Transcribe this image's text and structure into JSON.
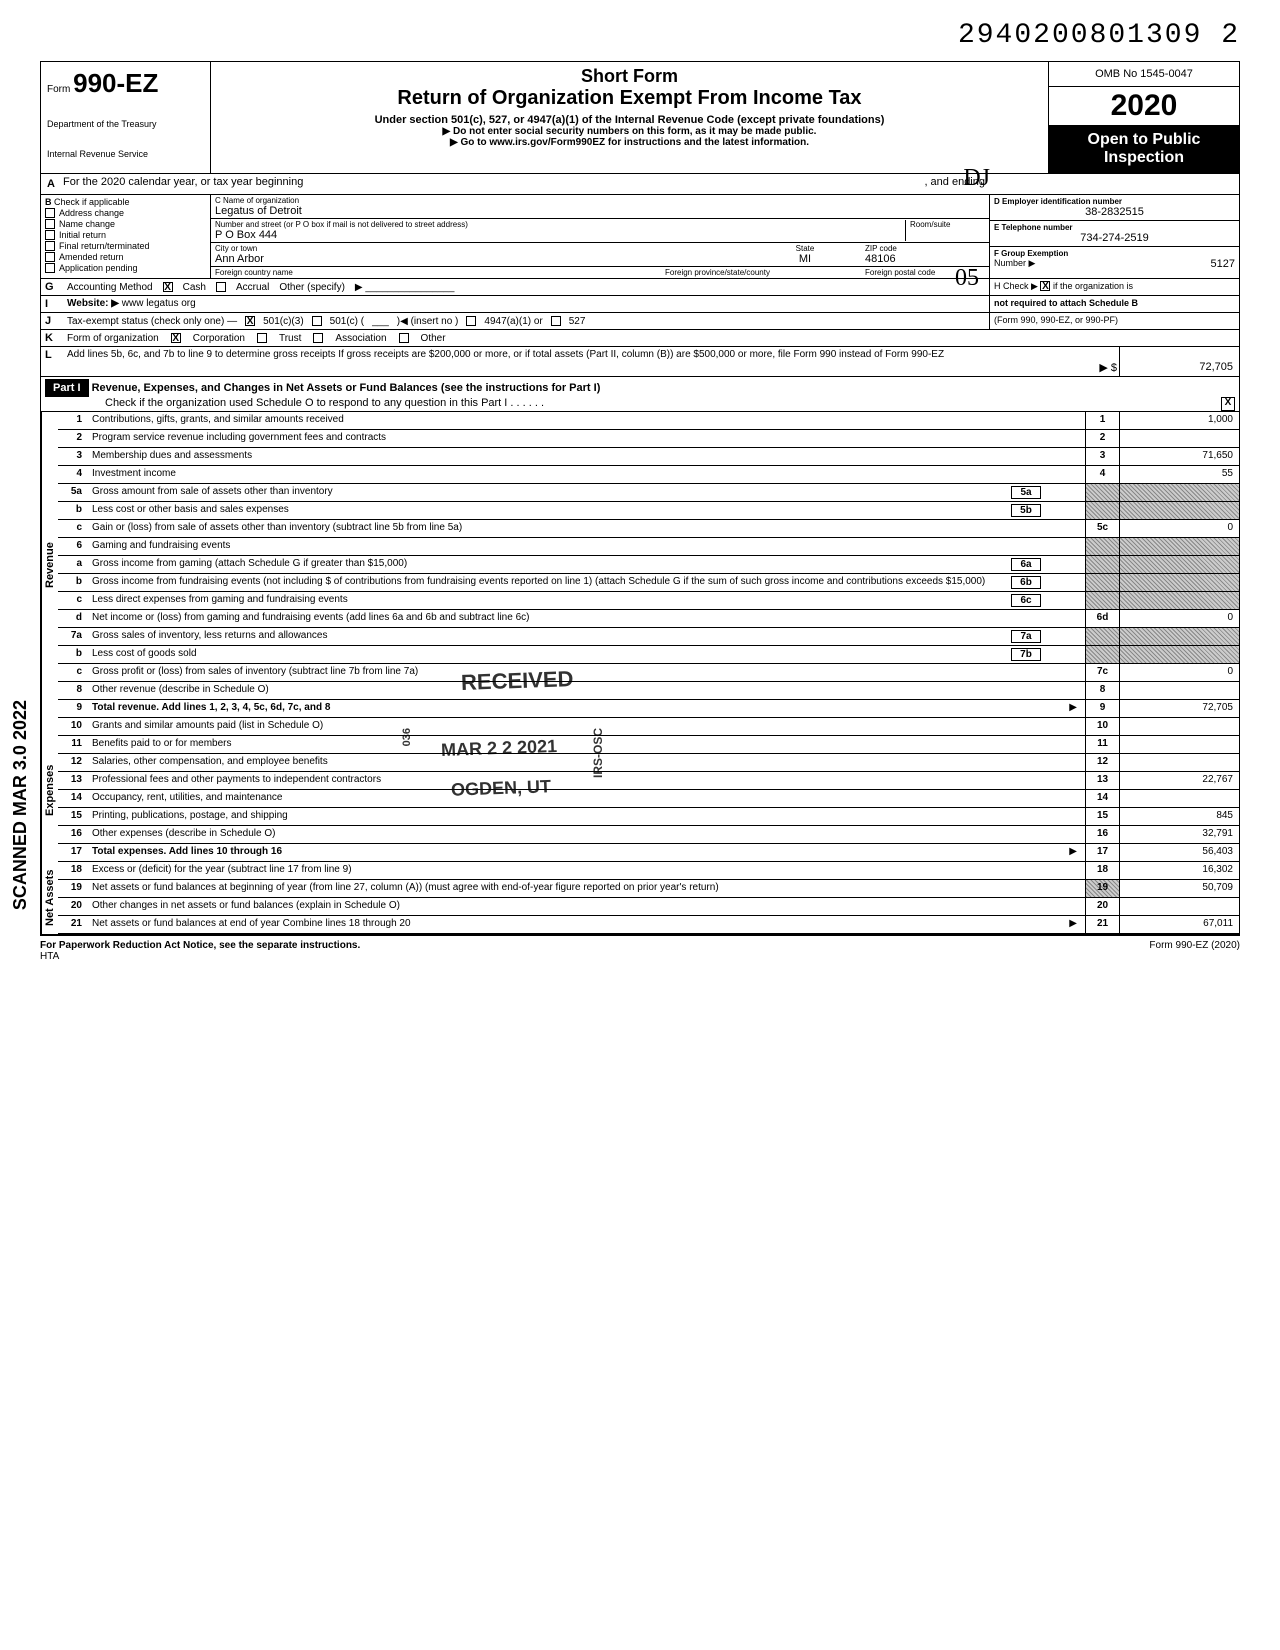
{
  "dln": "29402008013092",
  "dln_display": "2940200801309  2",
  "form": {
    "prefix": "Form",
    "number": "990-EZ",
    "dept1": "Department of the Treasury",
    "dept2": "Internal Revenue Service"
  },
  "title": {
    "short": "Short Form",
    "main": "Return of Organization Exempt From Income Tax",
    "sub": "Under section 501(c), 527, or 4947(a)(1) of the Internal Revenue Code (except private foundations)",
    "inst1": "Do not enter social security numbers on this form, as it may be made public.",
    "inst2": "Go to www.irs.gov/Form990EZ for instructions and the latest information."
  },
  "right": {
    "omb": "OMB No 1545-0047",
    "year": "2020",
    "open1": "Open to Public",
    "open2": "Inspection"
  },
  "rowA": "For the 2020 calendar year, or tax year beginning",
  "rowA_end": ", and ending",
  "rowB": {
    "label": "Check if applicable",
    "items": [
      "Address change",
      "Name change",
      "Initial return",
      "Final return/terminated",
      "Amended return",
      "Application pending"
    ]
  },
  "org": {
    "name_label": "C  Name of organization",
    "name": "Legatus of Detroit",
    "street_label": "Number and street (or P O  box if mail is not delivered to street address)",
    "room_label": "Room/suite",
    "street": "P O Box 444",
    "city_label": "City or town",
    "state_label": "State",
    "zip_label": "ZIP code",
    "city": "Ann Arbor",
    "state": "MI",
    "zip": "48106",
    "foreign_country_label": "Foreign country name",
    "foreign_prov_label": "Foreign province/state/county",
    "foreign_postal_label": "Foreign postal code"
  },
  "boxD": {
    "label": "D  Employer identification number",
    "value": "38-2832515"
  },
  "boxE": {
    "label": "E  Telephone number",
    "value": "734-274-2519"
  },
  "boxF": {
    "label": "F  Group Exemption",
    "label2": "Number ▶",
    "value": "5127"
  },
  "rowG": {
    "label": "Accounting Method",
    "cash": "Cash",
    "accrual": "Accrual",
    "other": "Other (specify)",
    "cash_checked": "X"
  },
  "rowI": {
    "label": "Website: ▶",
    "value": "www legatus org"
  },
  "boxH": {
    "text1": "H Check ▶",
    "checked": "X",
    "text2": "if the organization is",
    "text3": "not required to attach Schedule B",
    "text4": "(Form 990, 990-EZ, or 990-PF)"
  },
  "rowJ": {
    "label": "Tax-exempt status (check only one) —",
    "opt1": "501(c)(3)",
    "opt1_checked": "X",
    "opt2": "501(c) (",
    "opt2_insert": ")◀ (insert no )",
    "opt3": "4947(a)(1) or",
    "opt4": "527"
  },
  "rowK": {
    "label": "Form of organization",
    "corp": "Corporation",
    "corp_checked": "X",
    "trust": "Trust",
    "assoc": "Association",
    "other": "Other"
  },
  "rowL": {
    "text": "Add lines 5b, 6c, and 7b to line 9 to determine gross receipts  If gross receipts are $200,000 or more, or if total assets (Part II, column (B)) are $500,000 or more, file Form 990 instead of Form 990-EZ",
    "arrow": "▶ $",
    "value": "72,705"
  },
  "part1": {
    "header": "Part I",
    "title": "Revenue, Expenses, and Changes in Net Assets or Fund Balances (see the instructions for Part I)",
    "check_text": "Check if the organization used Schedule O to respond to any question in this Part I",
    "checked": "X"
  },
  "sections": {
    "revenue": "Revenue",
    "expenses": "Expenses",
    "net_assets": "Net Assets"
  },
  "lines": [
    {
      "num": "1",
      "desc": "Contributions, gifts, grants, and similar amounts received",
      "ln": "1",
      "amt": "1,000"
    },
    {
      "num": "2",
      "desc": "Program service revenue including government fees and contracts",
      "ln": "2",
      "amt": ""
    },
    {
      "num": "3",
      "desc": "Membership dues and assessments",
      "ln": "3",
      "amt": "71,650"
    },
    {
      "num": "4",
      "desc": "Investment income",
      "ln": "4",
      "amt": "55"
    },
    {
      "num": "5a",
      "desc": "Gross amount from sale of assets other than inventory",
      "sub": "5a",
      "shaded": true
    },
    {
      "num": "b",
      "desc": "Less  cost or other basis and sales expenses",
      "sub": "5b",
      "shaded": true
    },
    {
      "num": "c",
      "desc": "Gain or (loss) from sale of assets other than inventory (subtract line 5b from line 5a)",
      "ln": "5c",
      "amt": "0"
    },
    {
      "num": "6",
      "desc": "Gaming and fundraising events",
      "shaded": true
    },
    {
      "num": "a",
      "desc": "Gross income from gaming (attach Schedule G if greater than $15,000)",
      "sub": "6a",
      "shaded": true
    },
    {
      "num": "b",
      "desc": "Gross income from fundraising events (not including   $            of contributions from fundraising events reported on line 1) (attach Schedule G if the sum of such gross income and contributions exceeds $15,000)",
      "sub": "6b",
      "shaded": true
    },
    {
      "num": "c",
      "desc": "Less  direct expenses from gaming and fundraising events",
      "sub": "6c",
      "shaded": true
    },
    {
      "num": "d",
      "desc": "Net income or (loss) from gaming and fundraising events (add lines 6a and 6b and subtract line 6c)",
      "ln": "6d",
      "amt": "0"
    },
    {
      "num": "7a",
      "desc": "Gross sales of inventory, less returns and allowances",
      "sub": "7a",
      "shaded": true
    },
    {
      "num": "b",
      "desc": "Less  cost of goods sold",
      "sub": "7b",
      "shaded": true
    },
    {
      "num": "c",
      "desc": "Gross profit or (loss) from sales of inventory (subtract line 7b from line 7a)",
      "ln": "7c",
      "amt": "0"
    },
    {
      "num": "8",
      "desc": "Other revenue (describe in Schedule O)",
      "ln": "8",
      "amt": ""
    },
    {
      "num": "9",
      "desc": "Total revenue. Add lines 1, 2, 3, 4, 5c, 6d, 7c, and 8",
      "ln": "9",
      "amt": "72,705",
      "bold": true,
      "arrow": "▶"
    }
  ],
  "exp_lines": [
    {
      "num": "10",
      "desc": "Grants and similar amounts paid (list in Schedule O)",
      "ln": "10",
      "amt": ""
    },
    {
      "num": "11",
      "desc": "Benefits paid to or for members",
      "ln": "11",
      "amt": ""
    },
    {
      "num": "12",
      "desc": "Salaries, other compensation, and employee benefits",
      "ln": "12",
      "amt": ""
    },
    {
      "num": "13",
      "desc": "Professional fees and other payments to independent contractors",
      "ln": "13",
      "amt": "22,767"
    },
    {
      "num": "14",
      "desc": "Occupancy, rent, utilities, and maintenance",
      "ln": "14",
      "amt": ""
    },
    {
      "num": "15",
      "desc": "Printing, publications, postage, and shipping",
      "ln": "15",
      "amt": "845"
    },
    {
      "num": "16",
      "desc": "Other expenses (describe in Schedule O)",
      "ln": "16",
      "amt": "32,791"
    },
    {
      "num": "17",
      "desc": "Total expenses. Add lines 10 through 16",
      "ln": "17",
      "amt": "56,403",
      "bold": true,
      "arrow": "▶"
    }
  ],
  "net_lines": [
    {
      "num": "18",
      "desc": "Excess or (deficit) for the year (subtract line 17 from line 9)",
      "ln": "18",
      "amt": "16,302"
    },
    {
      "num": "19",
      "desc": "Net assets or fund balances at beginning of year (from line 27, column (A)) (must agree with end-of-year figure reported on prior year's return)",
      "ln": "19",
      "amt": "50,709",
      "shaded_top": true
    },
    {
      "num": "20",
      "desc": "Other changes in net assets or fund balances (explain in Schedule O)",
      "ln": "20",
      "amt": ""
    },
    {
      "num": "21",
      "desc": "Net assets or fund balances at end of year  Combine lines 18 through 20",
      "ln": "21",
      "amt": "67,011",
      "arrow": "▶"
    }
  ],
  "footer": {
    "left": "For Paperwork Reduction Act Notice, see the separate instructions.",
    "hta": "HTA",
    "right": "Form 990-EZ (2020)"
  },
  "stamps": {
    "received": "RECEIVED",
    "date": "MAR 2 2 2021",
    "ogden": "OGDEN, UT",
    "irs": "IRS-OSC",
    "scanned": "SCANNED MAR 3.0 2022",
    "initials": "DJ",
    "initials2": "05",
    "doc36": "036"
  }
}
